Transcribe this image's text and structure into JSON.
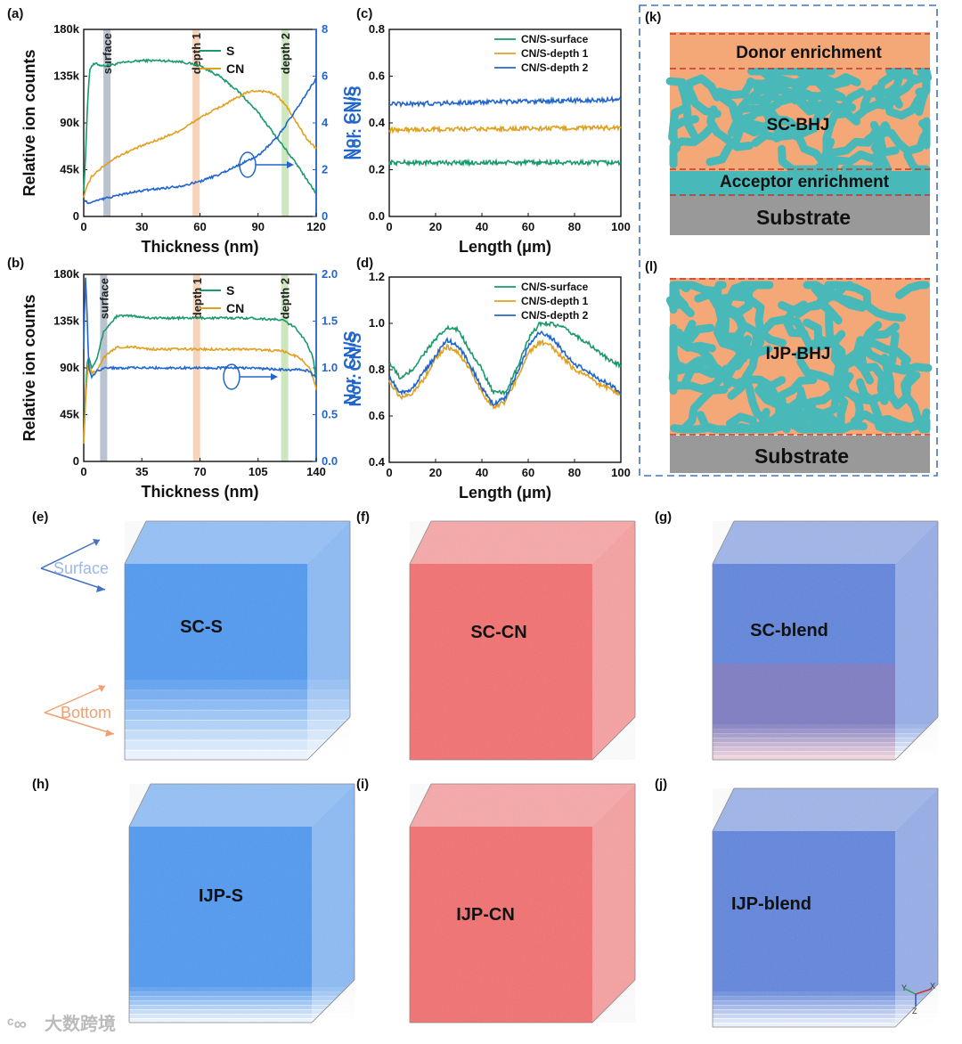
{
  "panel_labels": {
    "a": "(a)",
    "b": "(b)",
    "c": "(c)",
    "d": "(d)",
    "e": "(e)",
    "f": "(f)",
    "g": "(g)",
    "h": "(h)",
    "i": "(i)",
    "j": "(j)",
    "k": "(k)",
    "l": "(l)"
  },
  "colors": {
    "green": "#1a9a6a",
    "orange": "#e0a020",
    "blue": "#2266cc",
    "accent_blue": "#2f6fd0",
    "peach": "#f4a878",
    "teal": "#48b8b8",
    "substrate": "#999999",
    "red_dash": "#c0392b",
    "cube_blue": "#3d8ef0",
    "cube_red": "#f26060",
    "cube_blend": "#5078d8"
  },
  "chart_data": [
    {
      "id": "a",
      "type": "line",
      "xlabel": "Thickness (nm)",
      "ylabel": "Relative ion counts",
      "y2label": "Nor. CN/S",
      "xlim": [
        0,
        120
      ],
      "xticks": [
        "0",
        "30",
        "60",
        "90",
        "120"
      ],
      "ylim": [
        0,
        180000
      ],
      "yticks": [
        "0",
        "45k",
        "90k",
        "135k",
        "180k"
      ],
      "y2lim": [
        0,
        8
      ],
      "y2ticks": [
        "0",
        "2",
        "4",
        "6",
        "8"
      ],
      "bands": [
        {
          "label": "surface",
          "x": 12,
          "color": "#a9b4c4"
        },
        {
          "label": "depth 1",
          "x": 58,
          "color": "#f4c8a8"
        },
        {
          "label": "depth 2",
          "x": 104,
          "color": "#bfe0b0"
        }
      ],
      "series": [
        {
          "name": "S",
          "axis": "left",
          "color": "#1a9a6a",
          "x": [
            0,
            1,
            2,
            3,
            4,
            6,
            10,
            15,
            20,
            30,
            40,
            50,
            60,
            70,
            80,
            90,
            100,
            110,
            120
          ],
          "y": [
            25000,
            60000,
            110000,
            140000,
            145000,
            147000,
            145000,
            146000,
            148000,
            150000,
            150000,
            149000,
            145000,
            135000,
            120000,
            100000,
            75000,
            50000,
            22000
          ]
        },
        {
          "name": "CN",
          "axis": "left",
          "color": "#e0a020",
          "x": [
            0,
            1,
            2,
            4,
            6,
            8,
            10,
            15,
            20,
            30,
            40,
            50,
            60,
            70,
            80,
            85,
            90,
            95,
            100,
            105,
            110,
            115,
            120
          ],
          "y": [
            18000,
            25000,
            30000,
            38000,
            42000,
            45000,
            48000,
            55000,
            60000,
            68000,
            75000,
            83000,
            95000,
            105000,
            115000,
            120000,
            121000,
            120000,
            116000,
            105000,
            90000,
            75000,
            65000
          ]
        },
        {
          "name": "Nor. CN/S",
          "axis": "right",
          "color": "#2266cc",
          "x": [
            0,
            2,
            4,
            6,
            10,
            20,
            30,
            40,
            50,
            60,
            70,
            80,
            90,
            100,
            110,
            120
          ],
          "y": [
            0.7,
            0.6,
            0.6,
            0.65,
            0.75,
            0.95,
            1.1,
            1.2,
            1.3,
            1.5,
            1.8,
            2.2,
            2.6,
            3.4,
            4.6,
            5.9
          ]
        }
      ]
    },
    {
      "id": "b",
      "type": "line",
      "xlabel": "Thickness (nm)",
      "ylabel": "Relative ion counts",
      "y2label": "Nor. CN/S",
      "xlim": [
        0,
        140
      ],
      "xticks": [
        "0",
        "35",
        "70",
        "105",
        "140"
      ],
      "ylim": [
        0,
        180000
      ],
      "yticks": [
        "0",
        "45k",
        "90k",
        "135k",
        "180k"
      ],
      "y2lim": [
        0,
        2.0
      ],
      "y2ticks": [
        "0.0",
        "0.5",
        "1.0",
        "1.5",
        "2.0"
      ],
      "bands": [
        {
          "label": "surface",
          "x": 12,
          "color": "#a9b4c4"
        },
        {
          "label": "depth 1",
          "x": 68,
          "color": "#f4c8a8"
        },
        {
          "label": "depth 2",
          "x": 121,
          "color": "#bfe0b0"
        }
      ],
      "series": [
        {
          "name": "S",
          "axis": "left",
          "color": "#1a9a6a",
          "x": [
            0,
            1,
            2,
            3,
            5,
            8,
            12,
            20,
            30,
            40,
            60,
            80,
            100,
            120,
            128,
            134,
            138,
            140
          ],
          "y": [
            20000,
            60000,
            95000,
            100000,
            90000,
            100000,
            125000,
            140000,
            140000,
            138000,
            138000,
            138000,
            138000,
            136000,
            128000,
            115000,
            100000,
            80000
          ]
        },
        {
          "name": "CN",
          "axis": "left",
          "color": "#e0a020",
          "x": [
            0,
            1,
            2,
            3,
            5,
            8,
            12,
            20,
            30,
            40,
            60,
            80,
            100,
            120,
            130,
            136,
            140
          ],
          "y": [
            18000,
            55000,
            80000,
            95000,
            85000,
            88000,
            100000,
            110000,
            110000,
            108000,
            108000,
            108000,
            108000,
            106000,
            100000,
            90000,
            70000
          ]
        },
        {
          "name": "Nor. CN/S",
          "axis": "right",
          "color": "#2266cc",
          "x": [
            0,
            1,
            2,
            3,
            5,
            8,
            12,
            20,
            40,
            60,
            80,
            100,
            120,
            130,
            135,
            140
          ],
          "y": [
            1.2,
            2.0,
            1.6,
            1.0,
            0.9,
            0.97,
            1.0,
            1.0,
            1.0,
            1.0,
            1.0,
            1.0,
            0.98,
            0.98,
            0.97,
            0.9
          ]
        }
      ]
    },
    {
      "id": "c",
      "type": "line",
      "xlabel": "Length (μm)",
      "ylabel": "Nor. CN/S",
      "xlim": [
        0,
        100
      ],
      "xticks": [
        "0",
        "20",
        "40",
        "60",
        "80",
        "100"
      ],
      "ylim": [
        0,
        0.8
      ],
      "yticks": [
        "0.0",
        "0.2",
        "0.4",
        "0.6",
        "0.8"
      ],
      "legend_position": "top-right",
      "series": [
        {
          "name": "CN/S-surface",
          "color": "#1a9a6a",
          "x": [
            0,
            100
          ],
          "y": [
            0.23,
            0.23
          ]
        },
        {
          "name": "CN/S-depth 1",
          "color": "#e0a020",
          "x": [
            0,
            100
          ],
          "y": [
            0.37,
            0.38
          ]
        },
        {
          "name": "CN/S-depth 2",
          "color": "#2266cc",
          "x": [
            0,
            100
          ],
          "y": [
            0.48,
            0.5
          ]
        }
      ]
    },
    {
      "id": "d",
      "type": "line",
      "xlabel": "Length (μm)",
      "ylabel": "Nor. CN/S",
      "xlim": [
        0,
        100
      ],
      "xticks": [
        "0",
        "20",
        "40",
        "60",
        "80",
        "100"
      ],
      "ylim": [
        0.4,
        1.2
      ],
      "yticks": [
        "0.4",
        "0.6",
        "0.8",
        "1.0",
        "1.2"
      ],
      "legend_position": "top-right",
      "series": [
        {
          "name": "CN/S-surface",
          "color": "#1a9a6a",
          "x": [
            0,
            5,
            10,
            15,
            20,
            25,
            30,
            35,
            40,
            45,
            50,
            55,
            60,
            65,
            70,
            75,
            80,
            85,
            90,
            95,
            100
          ],
          "y": [
            0.83,
            0.76,
            0.8,
            0.87,
            0.93,
            0.98,
            0.97,
            0.88,
            0.8,
            0.7,
            0.7,
            0.8,
            0.93,
            1.0,
            1.0,
            0.98,
            0.95,
            0.92,
            0.88,
            0.84,
            0.82
          ]
        },
        {
          "name": "CN/S-depth 1",
          "color": "#e0a020",
          "x": [
            0,
            5,
            10,
            15,
            20,
            25,
            30,
            35,
            40,
            45,
            50,
            55,
            60,
            65,
            70,
            75,
            80,
            85,
            90,
            95,
            100
          ],
          "y": [
            0.75,
            0.68,
            0.7,
            0.76,
            0.85,
            0.9,
            0.87,
            0.8,
            0.7,
            0.64,
            0.66,
            0.76,
            0.87,
            0.92,
            0.9,
            0.85,
            0.8,
            0.78,
            0.74,
            0.72,
            0.69
          ]
        },
        {
          "name": "CN/S-depth 2",
          "color": "#2266cc",
          "x": [
            0,
            5,
            10,
            15,
            20,
            25,
            30,
            35,
            40,
            45,
            50,
            55,
            60,
            65,
            70,
            75,
            80,
            85,
            90,
            95,
            100
          ],
          "y": [
            0.77,
            0.7,
            0.72,
            0.79,
            0.86,
            0.93,
            0.9,
            0.82,
            0.72,
            0.65,
            0.68,
            0.78,
            0.9,
            0.96,
            0.94,
            0.88,
            0.82,
            0.8,
            0.76,
            0.74,
            0.7
          ]
        }
      ]
    }
  ],
  "schematics": {
    "k": {
      "top": "Donor enrichment",
      "middle": "SC-BHJ",
      "bottom": "Acceptor enrichment",
      "substrate": "Substrate"
    },
    "l": {
      "middle": "IJP-BHJ",
      "substrate": "Substrate"
    }
  },
  "cubes": {
    "e": {
      "label": "SC-S",
      "color": "#3d8ef0"
    },
    "f": {
      "label": "SC-CN",
      "color": "#f26060"
    },
    "g": {
      "label": "SC-blend",
      "color": "#5078d8"
    },
    "h": {
      "label": "IJP-S",
      "color": "#3d8ef0"
    },
    "i": {
      "label": "IJP-CN",
      "color": "#f26060"
    },
    "j": {
      "label": "IJP-blend",
      "color": "#5078d8"
    }
  },
  "cube_annotations": {
    "surface": "Surface",
    "bottom": "Bottom"
  },
  "axis_triad": {
    "x": "X",
    "y": "Y",
    "z": "Z"
  },
  "watermark": "大数跨境"
}
